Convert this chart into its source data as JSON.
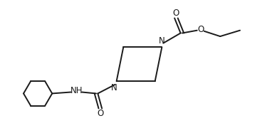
{
  "bg_color": "#ffffff",
  "line_color": "#1a1a1a",
  "line_width": 1.4,
  "font_size": 8.5,
  "fig_width": 3.89,
  "fig_height": 1.94,
  "dpi": 100,
  "xlim": [
    0,
    10
  ],
  "ylim": [
    0,
    5
  ]
}
